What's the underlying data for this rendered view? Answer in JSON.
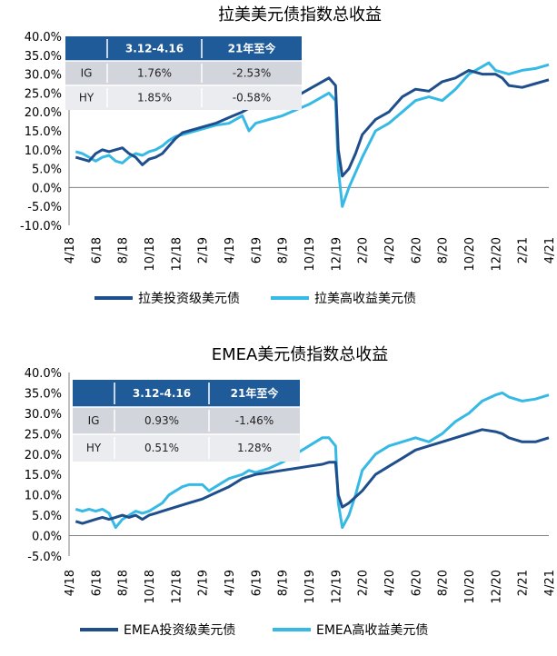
{
  "colors": {
    "ig_line": "#1f4e8c",
    "hy_line": "#36b9e4",
    "table_header": "#1f5a99",
    "table_row1": "#d3d5dc",
    "table_row2": "#ebecf0",
    "axis": "#808080"
  },
  "chart_data": [
    {
      "type": "line",
      "title": "拉美美元债指数总收益",
      "x_ticks": [
        "4/18",
        "6/18",
        "8/18",
        "10/18",
        "12/18",
        "2/19",
        "4/19",
        "6/19",
        "8/19",
        "10/19",
        "12/19",
        "2/20",
        "4/20",
        "6/20",
        "8/20",
        "10/20",
        "12/20",
        "2/21",
        "4/21"
      ],
      "y_ticks": [
        "40.0%",
        "35.0%",
        "30.0%",
        "25.0%",
        "20.0%",
        "15.0%",
        "10.0%",
        "5.0%",
        "0.0%",
        "-5.0%",
        "-10.0%"
      ],
      "ylim": [
        -10,
        40
      ],
      "xlim": [
        0,
        36
      ],
      "legend": [
        "拉美投资级美元债",
        "拉美高收益美元债"
      ],
      "table": {
        "headers": [
          "",
          "3.12-4.16",
          "21年至今"
        ],
        "rows": [
          [
            "IG",
            "1.76%",
            "-2.53%"
          ],
          [
            "HY",
            "1.85%",
            "-0.58%"
          ]
        ]
      },
      "series": [
        {
          "name": "拉美投资级美元债",
          "points": [
            [
              0.5,
              8
            ],
            [
              1,
              7.5
            ],
            [
              1.5,
              7
            ],
            [
              2,
              9
            ],
            [
              2.5,
              10
            ],
            [
              3,
              9.5
            ],
            [
              3.5,
              10
            ],
            [
              4,
              10.5
            ],
            [
              4.5,
              9
            ],
            [
              5,
              8
            ],
            [
              5.5,
              6
            ],
            [
              6,
              7.5
            ],
            [
              6.5,
              8
            ],
            [
              7,
              9
            ],
            [
              7.5,
              11
            ],
            [
              8,
              13
            ],
            [
              8.5,
              14.5
            ],
            [
              9,
              15
            ],
            [
              9.5,
              15.5
            ],
            [
              10,
              16
            ],
            [
              11,
              17
            ],
            [
              12,
              18.5
            ],
            [
              13,
              20
            ],
            [
              14,
              22
            ],
            [
              15,
              22.5
            ],
            [
              16,
              23
            ],
            [
              17,
              24
            ],
            [
              18,
              26
            ],
            [
              19,
              28
            ],
            [
              19.5,
              29
            ],
            [
              20,
              27
            ],
            [
              20.2,
              10
            ],
            [
              20.5,
              3
            ],
            [
              21,
              5
            ],
            [
              21.5,
              9
            ],
            [
              22,
              14
            ],
            [
              23,
              18
            ],
            [
              24,
              20
            ],
            [
              25,
              24
            ],
            [
              26,
              26
            ],
            [
              27,
              25.5
            ],
            [
              28,
              28
            ],
            [
              29,
              29
            ],
            [
              30,
              31
            ],
            [
              31,
              30
            ],
            [
              32,
              30
            ],
            [
              32.5,
              29
            ],
            [
              33,
              27
            ],
            [
              34,
              26.5
            ],
            [
              35,
              27.5
            ],
            [
              36,
              28.5
            ]
          ]
        },
        {
          "name": "拉美高收益美元债",
          "points": [
            [
              0.5,
              9.5
            ],
            [
              1,
              9
            ],
            [
              1.5,
              8
            ],
            [
              2,
              7
            ],
            [
              2.5,
              8
            ],
            [
              3,
              8.5
            ],
            [
              3.5,
              7
            ],
            [
              4,
              6.5
            ],
            [
              4.5,
              8
            ],
            [
              5,
              9
            ],
            [
              5.5,
              8.5
            ],
            [
              6,
              9.5
            ],
            [
              6.5,
              10
            ],
            [
              7,
              11
            ],
            [
              7.5,
              12.5
            ],
            [
              8,
              13.5
            ],
            [
              8.5,
              14
            ],
            [
              9,
              14.5
            ],
            [
              9.5,
              15
            ],
            [
              10,
              15.5
            ],
            [
              11,
              16.5
            ],
            [
              12,
              17
            ],
            [
              13,
              19
            ],
            [
              13.5,
              15
            ],
            [
              14,
              17
            ],
            [
              15,
              18
            ],
            [
              16,
              19
            ],
            [
              17,
              20.5
            ],
            [
              18,
              22
            ],
            [
              19,
              24
            ],
            [
              19.5,
              25
            ],
            [
              20,
              23
            ],
            [
              20.2,
              5
            ],
            [
              20.5,
              -5
            ],
            [
              21,
              0
            ],
            [
              21.5,
              4
            ],
            [
              22,
              8
            ],
            [
              23,
              15
            ],
            [
              24,
              17
            ],
            [
              25,
              20
            ],
            [
              26,
              23
            ],
            [
              27,
              24
            ],
            [
              28,
              23
            ],
            [
              29,
              26
            ],
            [
              30,
              30
            ],
            [
              31,
              32
            ],
            [
              31.5,
              33
            ],
            [
              32,
              31
            ],
            [
              33,
              30
            ],
            [
              34,
              31
            ],
            [
              35,
              31.5
            ],
            [
              36,
              32.5
            ]
          ]
        }
      ]
    },
    {
      "type": "line",
      "title": "EMEA美元债指数总收益",
      "x_ticks": [
        "4/18",
        "6/18",
        "8/18",
        "10/18",
        "12/18",
        "2/19",
        "4/19",
        "6/19",
        "8/19",
        "10/19",
        "12/19",
        "2/20",
        "4/20",
        "6/20",
        "8/20",
        "10/20",
        "12/20",
        "2/21",
        "4/21"
      ],
      "y_ticks": [
        "40.0%",
        "35.0%",
        "30.0%",
        "25.0%",
        "20.0%",
        "15.0%",
        "10.0%",
        "5.0%",
        "0.0%",
        "-5.0%"
      ],
      "ylim": [
        -5,
        40
      ],
      "xlim": [
        0,
        36
      ],
      "legend": [
        "EMEA投资级美元债",
        "EMEA高收益美元债"
      ],
      "table": {
        "headers": [
          "",
          "3.12-4.16",
          "21年至今"
        ],
        "rows": [
          [
            "IG",
            "0.93%",
            "-1.46%"
          ],
          [
            "HY",
            "0.51%",
            "1.28%"
          ]
        ]
      },
      "series": [
        {
          "name": "EMEA投资级美元债",
          "points": [
            [
              0.5,
              3.5
            ],
            [
              1,
              3
            ],
            [
              1.5,
              3.5
            ],
            [
              2,
              4
            ],
            [
              2.5,
              4.5
            ],
            [
              3,
              4
            ],
            [
              3.5,
              4.5
            ],
            [
              4,
              5
            ],
            [
              4.5,
              4.5
            ],
            [
              5,
              5
            ],
            [
              5.5,
              4
            ],
            [
              6,
              5
            ],
            [
              6.5,
              5.5
            ],
            [
              7,
              6
            ],
            [
              8,
              7
            ],
            [
              9,
              8
            ],
            [
              10,
              9
            ],
            [
              11,
              10.5
            ],
            [
              12,
              12
            ],
            [
              13,
              14
            ],
            [
              14,
              15
            ],
            [
              15,
              15.5
            ],
            [
              16,
              16
            ],
            [
              17,
              16.5
            ],
            [
              18,
              17
            ],
            [
              19,
              17.5
            ],
            [
              19.5,
              18
            ],
            [
              20,
              18
            ],
            [
              20.2,
              10
            ],
            [
              20.5,
              7
            ],
            [
              21,
              8
            ],
            [
              22,
              11
            ],
            [
              23,
              15
            ],
            [
              24,
              17
            ],
            [
              25,
              19
            ],
            [
              26,
              21
            ],
            [
              27,
              22
            ],
            [
              28,
              23
            ],
            [
              29,
              24
            ],
            [
              30,
              25
            ],
            [
              31,
              26
            ],
            [
              32,
              25.5
            ],
            [
              32.5,
              25
            ],
            [
              33,
              24
            ],
            [
              34,
              23
            ],
            [
              35,
              23
            ],
            [
              36,
              24
            ]
          ]
        },
        {
          "name": "EMEA高收益美元债",
          "points": [
            [
              0.5,
              6.5
            ],
            [
              1,
              6
            ],
            [
              1.5,
              6.5
            ],
            [
              2,
              6
            ],
            [
              2.5,
              6.5
            ],
            [
              3,
              5.5
            ],
            [
              3.5,
              2
            ],
            [
              4,
              4
            ],
            [
              4.5,
              5
            ],
            [
              5,
              6
            ],
            [
              5.5,
              5.5
            ],
            [
              6,
              6
            ],
            [
              6.5,
              7
            ],
            [
              7,
              8
            ],
            [
              7.5,
              10
            ],
            [
              8,
              11
            ],
            [
              8.5,
              12
            ],
            [
              9,
              12.5
            ],
            [
              10,
              12.5
            ],
            [
              10.5,
              11
            ],
            [
              11,
              12
            ],
            [
              12,
              14
            ],
            [
              13,
              15
            ],
            [
              13.5,
              16
            ],
            [
              14,
              15.5
            ],
            [
              15,
              16.5
            ],
            [
              16,
              18
            ],
            [
              17,
              20
            ],
            [
              18,
              22
            ],
            [
              19,
              24
            ],
            [
              19.5,
              24
            ],
            [
              20,
              22
            ],
            [
              20.2,
              8
            ],
            [
              20.5,
              2
            ],
            [
              21,
              5
            ],
            [
              21.5,
              10
            ],
            [
              22,
              16
            ],
            [
              23,
              20
            ],
            [
              24,
              22
            ],
            [
              25,
              23
            ],
            [
              26,
              24
            ],
            [
              27,
              23
            ],
            [
              28,
              25
            ],
            [
              29,
              28
            ],
            [
              30,
              30
            ],
            [
              31,
              33
            ],
            [
              32,
              34.5
            ],
            [
              32.5,
              35
            ],
            [
              33,
              34
            ],
            [
              34,
              33
            ],
            [
              35,
              33.5
            ],
            [
              36,
              34.5
            ]
          ]
        }
      ]
    }
  ]
}
